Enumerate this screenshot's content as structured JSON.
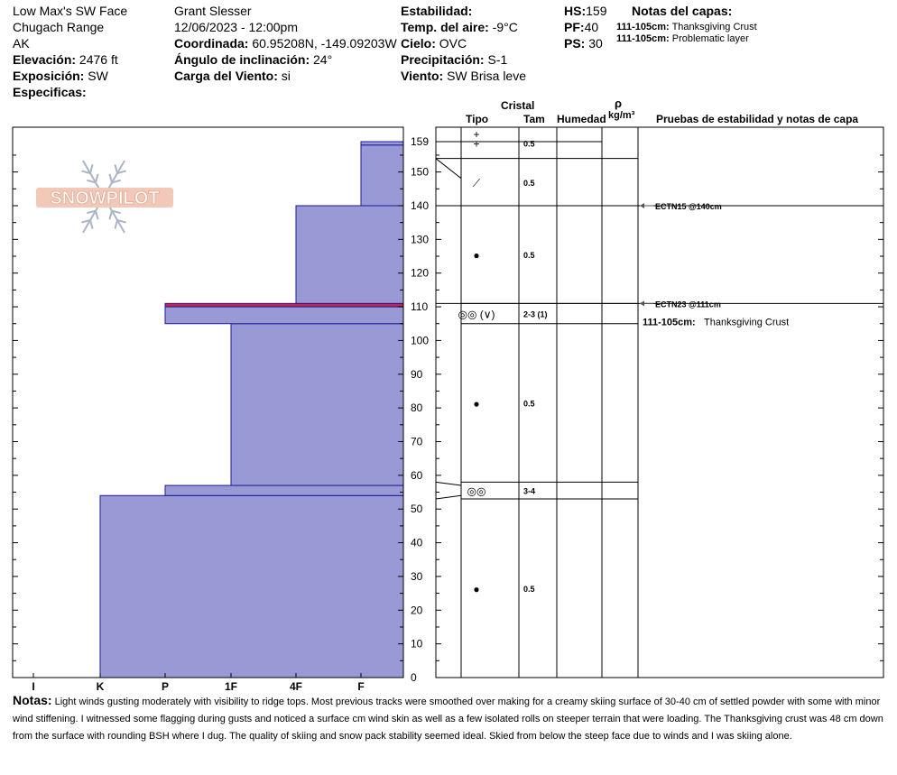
{
  "header": {
    "location": "Low Max's SW Face",
    "range": "Chugach Range",
    "state": "AK",
    "elevation_label": "Elevación:",
    "elevation_value": "2476 ft",
    "aspect_label": "Exposición:",
    "aspect_value": "SW",
    "specifics_label": "Especificas:",
    "observer": "Grant Slesser",
    "datetime": "12/06/2023 - 12:00pm",
    "coord_label": "Coordinada:",
    "coord_value": "60.95208N, -149.09203W",
    "slope_label": "Ángulo de inclinación:",
    "slope_value": "24°",
    "wind_load_label": "Carga del Viento:",
    "wind_load_value": "si",
    "stability_label": "Estabilidad:",
    "air_temp_label": "Temp. del aire:",
    "air_temp_value": "-9°C",
    "sky_label": "Cielo:",
    "sky_value": "OVC",
    "precip_label": "Precipitación:",
    "precip_value": "S-1",
    "wind_label": "Viento:",
    "wind_value": "SW  Brisa leve",
    "hs_label": "HS:",
    "hs_value": "159",
    "pf_label": "PF:",
    "pf_value": "40",
    "ps_label": "PS:",
    "ps_value": "30",
    "layer_notes_title": "Notas del capas:",
    "layer_notes": [
      {
        "range": "111-105cm:",
        "text": "Thanksgiving Crust"
      },
      {
        "range": "111-105cm:",
        "text": "Problematic layer"
      }
    ]
  },
  "logo_text": "SNOWPILOT",
  "columns": {
    "cristal": "Cristal",
    "tipo": "Tipo",
    "tam": "Tam",
    "humedad": "Humedad",
    "rho": "ρ",
    "density_unit": "kg/m³",
    "tests": "Pruebas de estabilidad y notas de capa"
  },
  "chart_data": {
    "type": "bar",
    "orientation": "horizontal",
    "y_range": [
      0,
      159
    ],
    "y_ticks": [
      0,
      10,
      20,
      30,
      40,
      50,
      60,
      70,
      80,
      90,
      100,
      110,
      120,
      130,
      140,
      150,
      159
    ],
    "hardness_scale": [
      "I",
      "K",
      "P",
      "1F",
      "4F",
      "F"
    ],
    "layers": [
      {
        "bottom": 0,
        "top": 54,
        "hardness": "K"
      },
      {
        "bottom": 54,
        "top": 57,
        "hardness": "P"
      },
      {
        "bottom": 57,
        "top": 105,
        "hardness": "1F"
      },
      {
        "bottom": 105,
        "top": 110,
        "hardness": "P"
      },
      {
        "bottom": 110,
        "top": 111,
        "hardness": "P",
        "color": "#cc2244"
      },
      {
        "bottom": 111,
        "top": 140,
        "hardness": "4F"
      },
      {
        "bottom": 140,
        "top": 158,
        "hardness": "F"
      },
      {
        "bottom": 158,
        "top": 159,
        "hardness": "F"
      }
    ],
    "grain_layers": [
      {
        "bottom": 154,
        "top": 159,
        "symbol": "+",
        "size": "0.5"
      },
      {
        "bottom": 140,
        "top": 154,
        "symbol": "⟋",
        "size": "0.5"
      },
      {
        "bottom": 111,
        "top": 140,
        "symbol": "●",
        "size": "0.5"
      },
      {
        "bottom": 105,
        "top": 111,
        "symbol": "◎◎ (∨)",
        "size": "2-3 (1)"
      },
      {
        "bottom": 58,
        "top": 105,
        "symbol": "●",
        "size": "0.5"
      },
      {
        "bottom": 53,
        "top": 58,
        "symbol": "◎◎",
        "size": "3-4"
      },
      {
        "bottom": 0,
        "top": 53,
        "symbol": "●",
        "size": "0.5"
      }
    ],
    "tests": [
      {
        "depth": 140,
        "label": "ECTN15 @140cm"
      },
      {
        "depth": 111,
        "label": "ECTN23 @111cm"
      }
    ],
    "layer_note": {
      "range": "111-105cm:",
      "text": "Thanksgiving Crust"
    },
    "colors": {
      "fill": "#9999d6",
      "stroke": "#1a1a99",
      "weak": "#cc2244"
    }
  },
  "notes": {
    "label": "Notas:",
    "text": "Light winds gusting moderately with visibility to ridge tops. Most previous tracks were smoothed over making for a creamy skiing surface of 30-40 cm of settled powder with some with minor wind stiffening. I witnessed some flagging during gusts and noticed a surface cm wind skin as well as a few isolated rolls on steeper terrain that were loading. The Thanksgiving crust was 48 cm down from the surface with rounding BSH where I dug. The quality of skiing and snow pack stability seemed ideal. Skied from below the steep face due to winds and I was skiing alone."
  }
}
